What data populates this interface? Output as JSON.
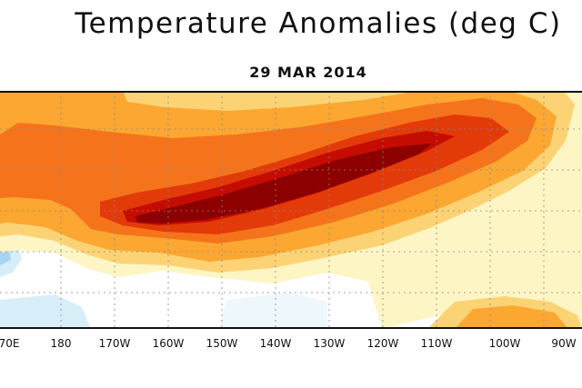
{
  "title": "Temperature Anomalies (deg C)",
  "date": "29 MAR 2014",
  "x_axis": {
    "tick_labels": [
      "70E",
      "180",
      "170W",
      "160W",
      "150W",
      "140W",
      "130W",
      "120W",
      "110W",
      "100W",
      "90W"
    ]
  },
  "colors": {
    "anomaly_0_5": "#fdf6c4",
    "anomaly_1": "#fcd374",
    "anomaly_1_5": "#fba732",
    "anomaly_2": "#f5741b",
    "anomaly_3": "#e33a09",
    "anomaly_4": "#c40d00",
    "anomaly_5": "#8c0000",
    "negative_light": "#d7eef9",
    "negative_med": "#a6d4f2"
  }
}
